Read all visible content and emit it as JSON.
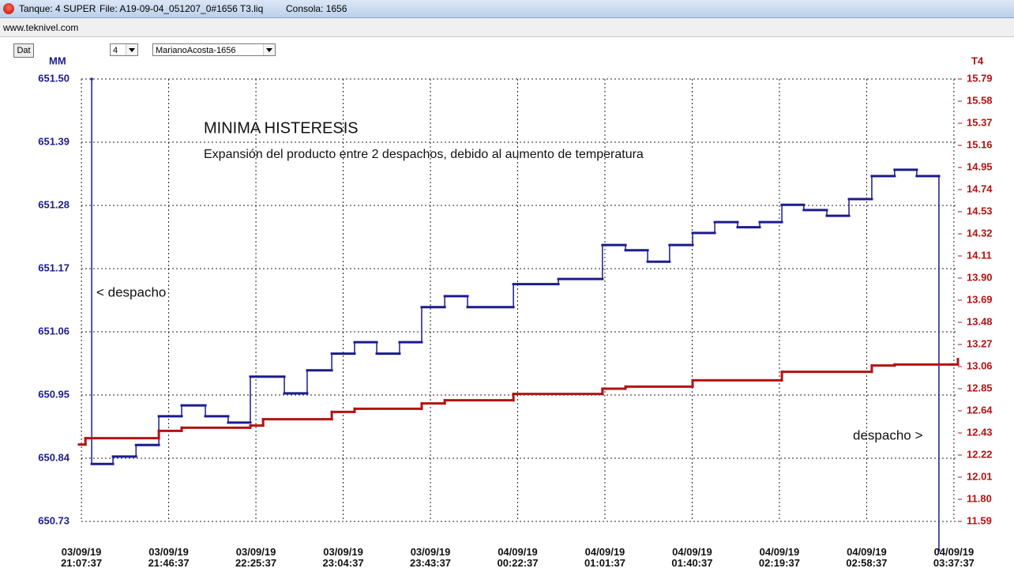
{
  "window": {
    "tank": "Tanque: 4 SUPER",
    "file": "File: A19-09-04_051207_0#1656 T3.liq",
    "console": "Consola: 1656",
    "menu": "www.teknivel.com",
    "button": "Dat",
    "tank_select": "4",
    "site_select": "MarianoAcosta-1656"
  },
  "chart_data": {
    "type": "step",
    "title": "MINIMA HISTERESIS",
    "subtitle": "Expansión del producto entre 2 despachos, debido al aumento de temperatura",
    "annotations": [
      "< despacho",
      "despacho >"
    ],
    "ylabel": "MM",
    "y2label": "T4",
    "grid": true,
    "xlim": [
      -1.1,
      391.8
    ],
    "xticks": [
      {
        "value": 0,
        "label": "03/09/19 21:07:37"
      },
      {
        "value": 39,
        "label": "03/09/19 21:46:37"
      },
      {
        "value": 78,
        "label": "03/09/19 22:25:37"
      },
      {
        "value": 117,
        "label": "03/09/19 23:04:37"
      },
      {
        "value": 156,
        "label": "03/09/19 23:43:37"
      },
      {
        "value": 195,
        "label": "04/09/19 00:22:37"
      },
      {
        "value": 234,
        "label": "04/09/19 01:01:37"
      },
      {
        "value": 273,
        "label": "04/09/19 01:40:37"
      },
      {
        "value": 312,
        "label": "04/09/19 02:19:37"
      },
      {
        "value": 351,
        "label": "04/09/19 02:58:37"
      },
      {
        "value": 390,
        "label": "04/09/19 03:37:37"
      }
    ],
    "ylim": [
      650.73,
      651.5
    ],
    "yticks": [
      {
        "value": 651.5,
        "label": "651.50"
      },
      651.39,
      651.28,
      651.17,
      651.06,
      650.95,
      650.84,
      650.73
    ],
    "y2lim": [
      11.59,
      15.79
    ],
    "y2ticks": [
      15.79,
      15.58,
      15.37,
      15.16,
      14.95,
      14.74,
      14.53,
      14.32,
      14.11,
      {
        "value": 13.9,
        "label": "13.90"
      },
      13.69,
      13.48,
      13.27,
      13.06,
      12.85,
      12.64,
      12.43,
      12.22,
      12.01,
      {
        "value": 11.8,
        "label": "11.80"
      },
      11.59
    ],
    "series": [
      {
        "color": "#1c1c8e",
        "x": [
          4.6,
          4.6,
          14.1,
          24.4,
          34.6,
          44.8,
          55.4,
          65.6,
          75.5,
          90.7,
          100.9,
          111.9,
          122.1,
          132.0,
          142.2,
          152.1,
          162.4,
          172.6,
          193.1,
          213.2,
          232.9,
          243.2,
          253.1,
          262.9,
          273.2,
          283.1,
          293.3,
          303.2,
          313.1,
          322.9,
          333.2,
          343.1,
          353.3,
          363.5,
          373.4,
          383.3,
          383.3
        ],
        "values": [
          651.5,
          650.83,
          650.843,
          650.863,
          650.913,
          650.932,
          650.913,
          650.902,
          650.982,
          650.953,
          650.993,
          651.022,
          651.042,
          651.022,
          651.042,
          651.103,
          651.122,
          651.103,
          651.143,
          651.152,
          651.211,
          651.202,
          651.182,
          651.211,
          651.232,
          651.251,
          651.242,
          651.251,
          651.281,
          651.272,
          651.262,
          651.291,
          651.331,
          651.342,
          651.331,
          651.331,
          650.68
        ]
      },
      {
        "color": "#b31212",
        "axis": "y2",
        "x": [
          -1.1,
          1.8,
          34.6,
          44.8,
          75.5,
          81.2,
          111.9,
          122.1,
          152.1,
          162.4,
          193.1,
          232.9,
          243.2,
          273.2,
          313.1,
          353.3,
          363.5,
          389.3,
          391.8
        ],
        "values": [
          12.32,
          12.38,
          12.45,
          12.48,
          12.5,
          12.56,
          12.63,
          12.66,
          12.71,
          12.74,
          12.8,
          12.85,
          12.87,
          12.93,
          13.01,
          13.07,
          13.08,
          13.08,
          13.13
        ]
      }
    ]
  }
}
